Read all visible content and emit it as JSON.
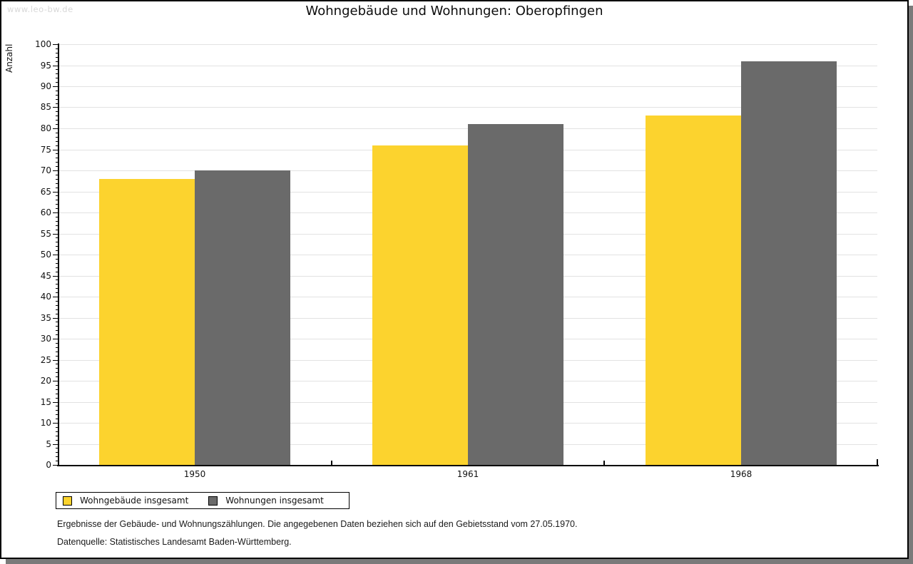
{
  "watermark": "www.leo-bw.de",
  "title": "Wohngebäude und Wohnungen: Oberopfingen",
  "chart_data": {
    "type": "bar",
    "title": "Wohngebäude und Wohnungen: Oberopfingen",
    "ylabel": "Anzahl",
    "xlabel": "",
    "ylim": [
      0,
      100
    ],
    "ytick_step": 5,
    "minor_tick_step": 1,
    "grid": true,
    "categories": [
      "1950",
      "1961",
      "1968"
    ],
    "series": [
      {
        "name": "Wohngebäude insgesamt",
        "color": "#fcd32e",
        "values": [
          68,
          76,
          83
        ]
      },
      {
        "name": "Wohnungen insgesamt",
        "color": "#6a6a6a",
        "values": [
          70,
          81,
          96
        ]
      }
    ],
    "legend_position": "bottom-left",
    "axis_color": "#000000",
    "gridline_color": "#e2e2e2"
  },
  "footnotes": [
    "Ergebnisse der Gebäude- und Wohnungszählungen. Die angegebenen Daten beziehen sich auf den Gebietsstand vom 27.05.1970.",
    "Datenquelle: Statistisches Landesamt Baden-Württemberg."
  ]
}
